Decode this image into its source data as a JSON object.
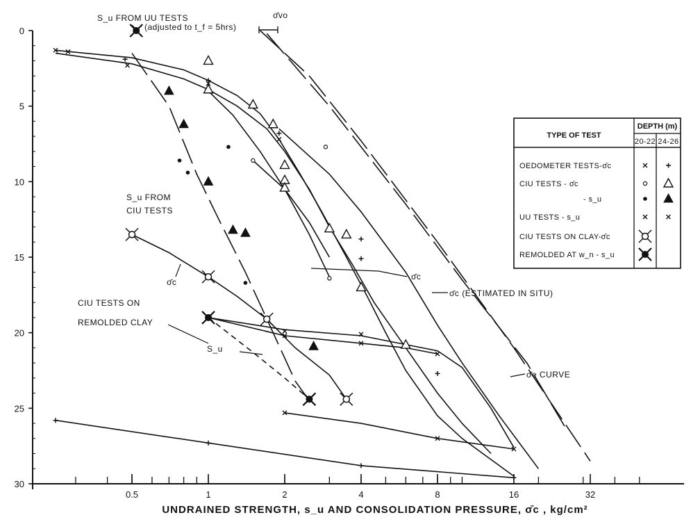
{
  "chart_data": {
    "type": "scatter",
    "title": "",
    "xlabel": "UNDRAINED STRENGTH, s_u AND CONSOLIDATION PRESSURE, σ̄c , kg/cm²",
    "ylabel": "",
    "x_scale": "log",
    "xlim": [
      0.25,
      64
    ],
    "ylim": [
      30,
      0
    ],
    "x_tick_labels": [
      "0.5",
      "1",
      "2",
      "4",
      "8",
      "16",
      "32"
    ],
    "x_tick_values": [
      0.5,
      1,
      2,
      4,
      8,
      16,
      32
    ],
    "y_tick_labels": [
      "0",
      "5",
      "10",
      "15",
      "20",
      "25",
      "30"
    ],
    "y_tick_values": [
      0,
      5,
      10,
      15,
      20,
      25,
      30
    ],
    "grid": false,
    "legend": {
      "placement": "right",
      "header_type": "TYPE OF TEST",
      "header_depth": "DEPTH (m)",
      "depth_cols": [
        "20-22",
        "24-26"
      ],
      "rows": [
        {
          "label": "OEDOMETER TESTS-σ̄c",
          "m1": "x",
          "m2": "+"
        },
        {
          "label": "CIU TESTS - σ̄c",
          "m1": "open-circle",
          "m2": "open-triangle"
        },
        {
          "label": "- s_u",
          "m1": "filled-circle",
          "m2": "filled-triangle"
        },
        {
          "label": "UU TESTS - s_u",
          "m1": "x",
          "m2": "x"
        },
        {
          "label": "CIU TESTS ON CLAY-σ̄c",
          "m1": "star-open",
          "m2": ""
        },
        {
          "label": "REMOLDED AT w_n - s_u",
          "m1": "star-filled",
          "m2": ""
        }
      ]
    },
    "annotations": [
      "S_u FROM UU TESTS",
      "(adjusted to t_f = 5hrs)",
      "σ̄vo",
      "S_u FROM",
      "CIU TESTS",
      "σ̄c",
      "CIU TESTS ON",
      "REMOLDED CLAY",
      "S_u",
      "σ̄c",
      "σ̄c (ESTIMATED IN SITU)",
      "σ̄e CURVE"
    ],
    "series": [
      {
        "marker": "open-triangle",
        "points": [
          [
            1,
            2
          ],
          [
            1,
            3.9
          ],
          [
            1.5,
            4.9
          ],
          [
            1.8,
            6.2
          ],
          [
            2,
            8.9
          ],
          [
            2,
            9.9
          ],
          [
            2,
            10.4
          ],
          [
            3,
            13.1
          ],
          [
            3.5,
            13.5
          ],
          [
            4,
            17
          ],
          [
            6,
            20.8
          ]
        ]
      },
      {
        "marker": "filled-triangle",
        "points": [
          [
            0.7,
            4
          ],
          [
            0.8,
            6.2
          ],
          [
            1,
            10
          ],
          [
            1.25,
            13.2
          ],
          [
            1.4,
            13.4
          ],
          [
            2.6,
            20.9
          ]
        ]
      },
      {
        "marker": "open-circle",
        "points": [
          [
            1.5,
            8.6
          ],
          [
            2.9,
            7.7
          ],
          [
            3,
            16.4
          ]
        ]
      },
      {
        "marker": "filled-circle",
        "points": [
          [
            0.77,
            8.6
          ],
          [
            0.83,
            9.4
          ],
          [
            1.2,
            7.7
          ],
          [
            1.4,
            16.7
          ]
        ]
      },
      {
        "marker": "x",
        "points": [
          [
            0.25,
            1.3
          ],
          [
            0.28,
            1.4
          ],
          [
            0.48,
            2.3
          ],
          [
            1,
            3.5
          ],
          [
            1.9,
            7.2
          ],
          [
            2,
            19.9
          ],
          [
            2,
            20.2
          ],
          [
            4,
            20.1
          ],
          [
            4,
            20.7
          ],
          [
            8,
            21.4
          ],
          [
            2,
            25.3
          ],
          [
            8,
            27
          ],
          [
            16,
            27.7
          ]
        ]
      },
      {
        "marker": "plus",
        "points": [
          [
            0.25,
            25.8
          ],
          [
            1,
            27.3
          ],
          [
            4,
            28.8
          ],
          [
            16,
            29.6
          ],
          [
            0.47,
            1.9
          ],
          [
            1,
            3.3
          ],
          [
            1.9,
            6.8
          ],
          [
            4,
            13.8
          ],
          [
            4,
            15.1
          ],
          [
            8,
            22.7
          ]
        ]
      },
      {
        "marker": "star-open",
        "points": [
          [
            0.5,
            13.5
          ],
          [
            1,
            16.3
          ],
          [
            1.7,
            19.1
          ],
          [
            3.5,
            24.4
          ]
        ]
      },
      {
        "marker": "star-filled",
        "points": [
          [
            0.52,
            0
          ],
          [
            1,
            19
          ],
          [
            2.5,
            24.4
          ]
        ]
      }
    ],
    "curves": [
      {
        "name": "uu-curve",
        "dash": "solid",
        "points": [
          [
            0.25,
            1.3
          ],
          [
            0.5,
            1.8
          ],
          [
            0.8,
            2.6
          ],
          [
            1,
            3.3
          ],
          [
            1.3,
            4.3
          ],
          [
            1.6,
            5.5
          ],
          [
            1.9,
            7.2
          ],
          [
            2.3,
            9.5
          ],
          [
            2.8,
            12
          ],
          [
            3.5,
            15
          ],
          [
            4.2,
            17.5
          ],
          [
            5,
            20
          ],
          [
            6,
            22.5
          ],
          [
            8,
            25.5
          ],
          [
            10,
            27
          ],
          [
            16,
            29.5
          ]
        ]
      },
      {
        "name": "ciu-sigmac-upper",
        "dash": "solid",
        "points": [
          [
            0.25,
            1.5
          ],
          [
            0.5,
            2.2
          ],
          [
            0.8,
            3.2
          ],
          [
            1,
            3.9
          ],
          [
            1.3,
            5
          ],
          [
            1.7,
            6.5
          ],
          [
            2,
            8
          ],
          [
            2.5,
            10.5
          ],
          [
            3,
            13
          ],
          [
            3.7,
            15.5
          ],
          [
            4.5,
            18
          ],
          [
            6,
            21
          ],
          [
            8,
            24
          ],
          [
            10,
            26
          ],
          [
            13,
            28
          ]
        ]
      },
      {
        "name": "ciu-sigmac-lower",
        "dash": "solid",
        "points": [
          [
            1,
            4
          ],
          [
            1.25,
            5.6
          ],
          [
            1.6,
            8
          ],
          [
            2,
            10.5
          ],
          [
            2.5,
            13.5
          ],
          [
            3,
            16.3
          ]
        ]
      },
      {
        "name": "ciu-sigmac-dotline",
        "dash": "solid",
        "points": [
          [
            1.5,
            8.6
          ],
          [
            2,
            10.5
          ],
          [
            2.5,
            12.7
          ],
          [
            3,
            15
          ]
        ]
      },
      {
        "name": "estimated-in-situ",
        "dash": "solid",
        "points": [
          [
            1.9,
            6.5
          ],
          [
            3,
            9.5
          ],
          [
            4,
            12
          ],
          [
            6,
            16
          ],
          [
            8,
            19.5
          ],
          [
            10,
            22
          ],
          [
            14,
            25.5
          ],
          [
            20,
            29
          ]
        ]
      },
      {
        "name": "sigma-vo",
        "dash": "long-dash",
        "points": [
          [
            1.6,
            0
          ],
          [
            2.5,
            3
          ],
          [
            4,
            7.3
          ],
          [
            8,
            14
          ],
          [
            16,
            21
          ],
          [
            32,
            28.5
          ]
        ]
      },
      {
        "name": "sigma-e",
        "dash": "long-dash",
        "points": [
          [
            1.7,
            0.2
          ],
          [
            3,
            5
          ],
          [
            6,
            11.5
          ],
          [
            10,
            16.5
          ],
          [
            18,
            22
          ],
          [
            26,
            26.5
          ]
        ]
      },
      {
        "name": "su-from-ciu",
        "dash": "long-dash",
        "points": [
          [
            0.5,
            1.5
          ],
          [
            0.7,
            5
          ],
          [
            0.9,
            9.5
          ],
          [
            1.1,
            12.5
          ],
          [
            1.4,
            16
          ],
          [
            1.8,
            20
          ],
          [
            2.2,
            23.2
          ],
          [
            2.5,
            24.5
          ]
        ]
      },
      {
        "name": "remolded-sigmac",
        "dash": "solid",
        "points": [
          [
            0.5,
            13.5
          ],
          [
            0.7,
            14.7
          ],
          [
            1,
            16.3
          ],
          [
            1.3,
            17.6
          ],
          [
            1.7,
            19.1
          ],
          [
            2.2,
            21
          ],
          [
            3,
            22.8
          ],
          [
            3.5,
            24.4
          ]
        ]
      },
      {
        "name": "remolded-su",
        "dash": "short-dash",
        "points": [
          [
            1,
            19
          ],
          [
            1.5,
            21.3
          ],
          [
            2,
            23
          ],
          [
            2.5,
            24.4
          ]
        ]
      },
      {
        "name": "oedometer-20-22-a",
        "dash": "solid",
        "points": [
          [
            1,
            19
          ],
          [
            2,
            19.8
          ],
          [
            4,
            20.2
          ],
          [
            8,
            21.2
          ],
          [
            10,
            22.3
          ],
          [
            13,
            25
          ],
          [
            16,
            27.6
          ]
        ]
      },
      {
        "name": "oedometer-20-22-b",
        "dash": "solid",
        "points": [
          [
            1,
            19
          ],
          [
            2,
            20.2
          ],
          [
            4,
            20.7
          ],
          [
            6,
            21
          ],
          [
            8,
            21.4
          ]
        ]
      },
      {
        "name": "oedometer-24-26",
        "dash": "solid",
        "points": [
          [
            0.25,
            25.8
          ],
          [
            1,
            27.3
          ],
          [
            4,
            28.8
          ],
          [
            16,
            29.6
          ]
        ]
      },
      {
        "name": "uu-deep",
        "dash": "solid",
        "points": [
          [
            2,
            25.3
          ],
          [
            4,
            26
          ],
          [
            8,
            27
          ],
          [
            16,
            27.7
          ]
        ]
      }
    ]
  }
}
